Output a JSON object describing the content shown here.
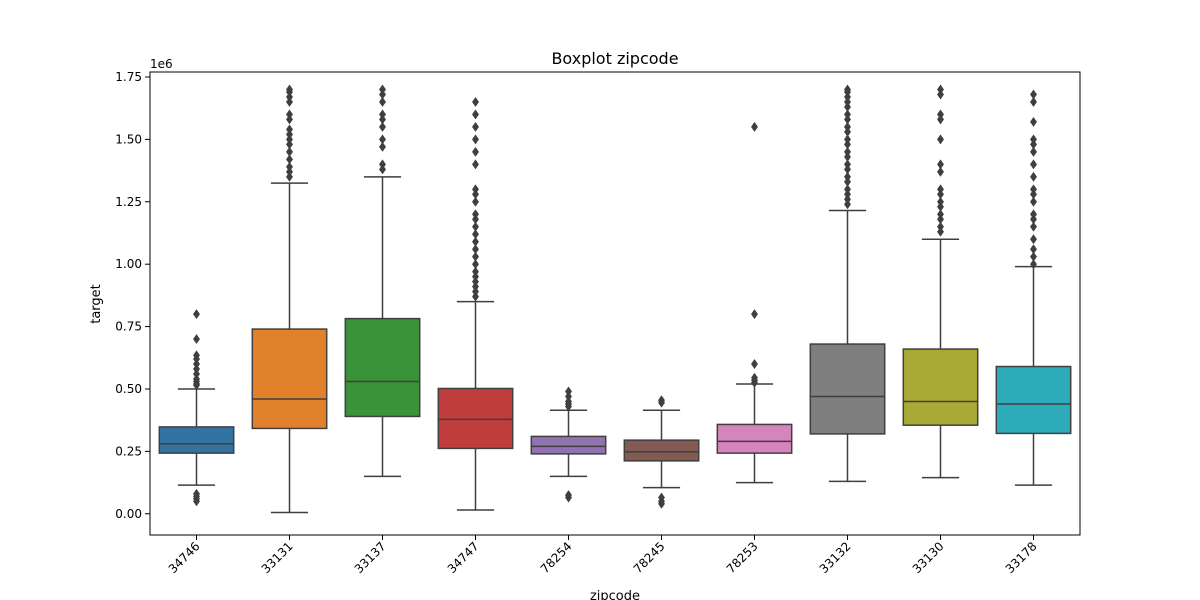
{
  "chart_data": {
    "type": "boxplot",
    "title": "Boxplot zipcode",
    "xlabel": "zipcode",
    "ylabel": "target",
    "y_offset_label": "1e6",
    "ylim": [
      -0.085,
      1.77
    ],
    "yticks": [
      0.0,
      0.25,
      0.5,
      0.75,
      1.0,
      1.25,
      1.5,
      1.75
    ],
    "ytick_labels": [
      "0.00",
      "0.25",
      "0.50",
      "0.75",
      "1.00",
      "1.25",
      "1.50",
      "1.75"
    ],
    "categories": [
      "34746",
      "33131",
      "33137",
      "34747",
      "78254",
      "78245",
      "78253",
      "33132",
      "33130",
      "33178"
    ],
    "colors": [
      "#3274a1",
      "#e1812c",
      "#3a923a",
      "#c03d3e",
      "#9372b2",
      "#845b53",
      "#d684bd",
      "#7f7f7f",
      "#a9aa35",
      "#2eabb8"
    ],
    "grid": false,
    "boxes": [
      {
        "whislo": 0.115,
        "q1": 0.243,
        "med": 0.28,
        "q3": 0.348,
        "whishi": 0.5,
        "fliers": [
          0.05,
          0.06,
          0.07,
          0.08,
          0.515,
          0.52,
          0.53,
          0.54,
          0.56,
          0.58,
          0.6,
          0.62,
          0.635,
          0.7,
          0.8
        ]
      },
      {
        "whislo": 0.005,
        "q1": 0.342,
        "med": 0.46,
        "q3": 0.74,
        "whishi": 1.325,
        "fliers": [
          1.35,
          1.37,
          1.39,
          1.42,
          1.45,
          1.48,
          1.5,
          1.52,
          1.54,
          1.58,
          1.6,
          1.65,
          1.67,
          1.69,
          1.7
        ]
      },
      {
        "whislo": 0.15,
        "q1": 0.39,
        "med": 0.53,
        "q3": 0.782,
        "whishi": 1.35,
        "fliers": [
          1.38,
          1.4,
          1.47,
          1.5,
          1.55,
          1.58,
          1.6,
          1.65,
          1.68,
          1.7
        ]
      },
      {
        "whislo": 0.015,
        "q1": 0.262,
        "med": 0.378,
        "q3": 0.502,
        "whishi": 0.85,
        "fliers": [
          0.87,
          0.89,
          0.91,
          0.93,
          0.95,
          0.97,
          1.0,
          1.03,
          1.06,
          1.09,
          1.12,
          1.15,
          1.18,
          1.2,
          1.25,
          1.28,
          1.3,
          1.4,
          1.45,
          1.5,
          1.55,
          1.6,
          1.65
        ]
      },
      {
        "whislo": 0.15,
        "q1": 0.24,
        "med": 0.27,
        "q3": 0.31,
        "whishi": 0.415,
        "fliers": [
          0.065,
          0.075,
          0.43,
          0.44,
          0.45,
          0.47,
          0.49
        ]
      },
      {
        "whislo": 0.105,
        "q1": 0.212,
        "med": 0.248,
        "q3": 0.295,
        "whishi": 0.415,
        "fliers": [
          0.04,
          0.05,
          0.065,
          0.445,
          0.455
        ]
      },
      {
        "whislo": 0.125,
        "q1": 0.243,
        "med": 0.29,
        "q3": 0.358,
        "whishi": 0.52,
        "fliers": [
          0.525,
          0.535,
          0.545,
          0.6,
          0.8,
          1.55
        ]
      },
      {
        "whislo": 0.13,
        "q1": 0.32,
        "med": 0.47,
        "q3": 0.68,
        "whishi": 1.215,
        "fliers": [
          1.24,
          1.26,
          1.28,
          1.3,
          1.33,
          1.35,
          1.38,
          1.4,
          1.43,
          1.45,
          1.48,
          1.5,
          1.53,
          1.55,
          1.58,
          1.6,
          1.63,
          1.65,
          1.67,
          1.69,
          1.7
        ]
      },
      {
        "whislo": 0.145,
        "q1": 0.355,
        "med": 0.45,
        "q3": 0.66,
        "whishi": 1.1,
        "fliers": [
          1.13,
          1.15,
          1.18,
          1.2,
          1.23,
          1.25,
          1.28,
          1.3,
          1.37,
          1.4,
          1.5,
          1.58,
          1.6,
          1.68,
          1.7
        ]
      },
      {
        "whislo": 0.115,
        "q1": 0.322,
        "med": 0.44,
        "q3": 0.59,
        "whishi": 0.99,
        "fliers": [
          1.0,
          1.03,
          1.06,
          1.1,
          1.15,
          1.18,
          1.2,
          1.25,
          1.28,
          1.3,
          1.35,
          1.4,
          1.45,
          1.48,
          1.5,
          1.57,
          1.65,
          1.68
        ]
      }
    ]
  }
}
